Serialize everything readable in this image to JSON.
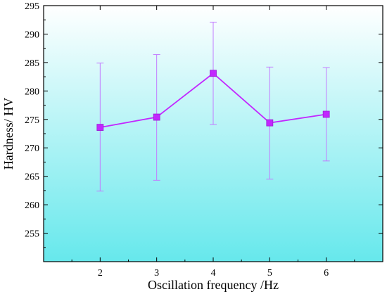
{
  "chart_data": {
    "type": "line",
    "xlabel": "Oscillation frequency /Hz",
    "ylabel": "Hardness/ HV",
    "x": [
      2,
      3,
      4,
      5,
      6
    ],
    "xlim": [
      1,
      7
    ],
    "ylim": [
      250,
      295
    ],
    "x_ticks": [
      "2",
      "3",
      "4",
      "5",
      "6"
    ],
    "y_ticks": [
      "255",
      "260",
      "265",
      "270",
      "275",
      "280",
      "285",
      "290",
      "295"
    ],
    "series": [
      {
        "values": [
          273.6,
          275.4,
          283.1,
          274.4,
          275.9
        ],
        "error_low": [
          262.4,
          264.3,
          274.1,
          264.5,
          267.7
        ],
        "error_high": [
          284.9,
          286.4,
          292.1,
          284.2,
          284.1
        ],
        "color": "#c227ff",
        "marker": "square"
      }
    ],
    "background_gradient": [
      "#ffffff",
      "#66e8ec"
    ],
    "grid": false
  }
}
